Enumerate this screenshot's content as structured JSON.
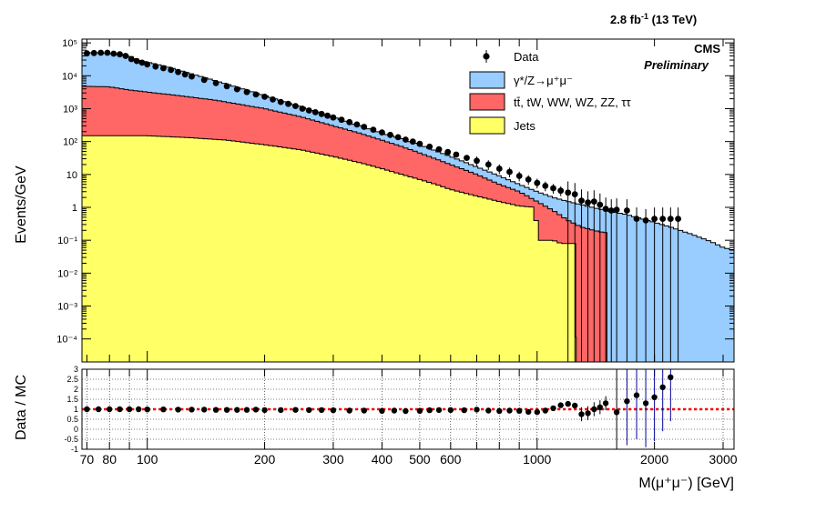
{
  "header": {
    "lumi": "2.8 fb",
    "lumi_sup": "-1",
    "lumi_energy": " (13 TeV)",
    "experiment": "CMS",
    "status": "Preliminary"
  },
  "colors": {
    "dy": "#99ccff",
    "ttbar": "#ff6666",
    "jets": "#ffff66",
    "data": "#000000",
    "ratio_line": "#ff0000",
    "ratio_err_high": "#000099"
  },
  "chart_data": [
    {
      "type": "area",
      "stacked": true,
      "log_y": true,
      "log_x": true,
      "xlabel": "M(μ⁺μ⁻) [GeV]",
      "ylabel": "Events/GeV",
      "xlim": [
        68,
        3200
      ],
      "ylim": [
        2e-05,
        130000
      ],
      "x_ticks": [
        "70",
        "80",
        "100",
        "200",
        "300",
        "400",
        "500",
        "600",
        "1000",
        "2000",
        "3000"
      ],
      "y_ticks": [
        "10⁵",
        "10⁴",
        "10³",
        "10²",
        "10",
        "1",
        "10⁻¹",
        "10⁻²",
        "10⁻³",
        "10⁻⁴"
      ],
      "legend": [
        "Data",
        "γ*/Z→μ⁺μ⁻",
        "tt̄, tW, WW, WZ, ZZ, ττ",
        "Jets"
      ],
      "legend_position": "top-right",
      "series": [
        {
          "name": "Jets",
          "points": [
            [
              68,
              150
            ],
            [
              100,
              150
            ],
            [
              130,
              130
            ],
            [
              160,
              110
            ],
            [
              200,
              80
            ],
            [
              250,
              55
            ],
            [
              300,
              35
            ],
            [
              350,
              23
            ],
            [
              400,
              15
            ],
            [
              450,
              10
            ],
            [
              500,
              7
            ],
            [
              550,
              5
            ],
            [
              600,
              3.5
            ],
            [
              700,
              2.2
            ],
            [
              800,
              1.5
            ],
            [
              900,
              1.1
            ],
            [
              990,
              1.0
            ],
            [
              1000,
              0.1
            ],
            [
              1100,
              0.1
            ],
            [
              1150,
              0.08
            ],
            [
              1250,
              0.08
            ],
            [
              1260,
              2e-05
            ]
          ]
        },
        {
          "name": "tt̄, tW, WW, WZ, ZZ, ττ",
          "points": [
            [
              68,
              4800
            ],
            [
              75,
              4700
            ],
            [
              80,
              4600
            ],
            [
              90,
              3700
            ],
            [
              100,
              3200
            ],
            [
              120,
              2500
            ],
            [
              150,
              1800
            ],
            [
              200,
              1000
            ],
            [
              250,
              550
            ],
            [
              300,
              300
            ],
            [
              350,
              180
            ],
            [
              400,
              110
            ],
            [
              450,
              70
            ],
            [
              500,
              45
            ],
            [
              600,
              20
            ],
            [
              700,
              10
            ],
            [
              800,
              5
            ],
            [
              900,
              3
            ],
            [
              1000,
              1.5
            ],
            [
              1100,
              0.8
            ],
            [
              1200,
              0.4
            ],
            [
              1300,
              0.25
            ],
            [
              1400,
              0.2
            ],
            [
              1450,
              0.18
            ],
            [
              1500,
              0.17
            ],
            [
              1510,
              2e-05
            ]
          ]
        },
        {
          "name": "γ*/Z→μ⁺μ⁻",
          "points": [
            [
              68,
              50000
            ],
            [
              75,
              50000
            ],
            [
              80,
              48000
            ],
            [
              85,
              45000
            ],
            [
              90,
              40000
            ],
            [
              95,
              30000
            ],
            [
              100,
              26000
            ],
            [
              110,
              20000
            ],
            [
              120,
              15000
            ],
            [
              150,
              7000
            ],
            [
              200,
              2500
            ],
            [
              250,
              1100
            ],
            [
              300,
              550
            ],
            [
              350,
              300
            ],
            [
              400,
              180
            ],
            [
              450,
              120
            ],
            [
              500,
              80
            ],
            [
              600,
              35
            ],
            [
              700,
              17
            ],
            [
              800,
              9
            ],
            [
              900,
              5
            ],
            [
              1000,
              3
            ],
            [
              1100,
              2
            ],
            [
              1200,
              1.5
            ],
            [
              1300,
              1.2
            ],
            [
              1500,
              0.8
            ],
            [
              1700,
              0.6
            ],
            [
              2000,
              0.35
            ],
            [
              2200,
              0.25
            ],
            [
              2500,
              0.15
            ],
            [
              2800,
              0.09
            ],
            [
              3000,
              0.06
            ],
            [
              3200,
              0.05
            ]
          ]
        },
        {
          "name": "Data",
          "points": [
            [
              70,
              48000
            ],
            [
              73,
              49000
            ],
            [
              76,
              50000
            ],
            [
              79,
              50000
            ],
            [
              82,
              47000
            ],
            [
              85,
              45000
            ],
            [
              88,
              40000
            ],
            [
              91,
              32000
            ],
            [
              94,
              28000
            ],
            [
              97,
              25000
            ],
            [
              100,
              22000
            ],
            [
              105,
              19000
            ],
            [
              110,
              17000
            ],
            [
              115,
              15000
            ],
            [
              120,
              13000
            ],
            [
              125,
              11000
            ],
            [
              130,
              9500
            ],
            [
              140,
              7500
            ],
            [
              150,
              6000
            ],
            [
              160,
              4800
            ],
            [
              170,
              3900
            ],
            [
              180,
              3200
            ],
            [
              190,
              2700
            ],
            [
              200,
              2300
            ],
            [
              210,
              1900
            ],
            [
              220,
              1600
            ],
            [
              230,
              1400
            ],
            [
              240,
              1200
            ],
            [
              250,
              1000
            ],
            [
              260,
              880
            ],
            [
              270,
              780
            ],
            [
              280,
              690
            ],
            [
              290,
              610
            ],
            [
              300,
              540
            ],
            [
              315,
              460
            ],
            [
              330,
              390
            ],
            [
              345,
              330
            ],
            [
              360,
              280
            ],
            [
              380,
              230
            ],
            [
              400,
              190
            ],
            [
              420,
              160
            ],
            [
              440,
              135
            ],
            [
              460,
              115
            ],
            [
              480,
              100
            ],
            [
              500,
              85
            ],
            [
              530,
              70
            ],
            [
              560,
              58
            ],
            [
              590,
              48
            ],
            [
              620,
              40
            ],
            [
              660,
              32
            ],
            [
              700,
              26
            ],
            [
              750,
              20
            ],
            [
              800,
              15
            ],
            [
              850,
              12
            ],
            [
              900,
              9
            ],
            [
              950,
              7
            ],
            [
              1000,
              5.5
            ],
            [
              1050,
              4.5
            ],
            [
              1100,
              3.8
            ],
            [
              1150,
              3.2
            ],
            [
              1200,
              2.8
            ],
            [
              1250,
              2.5
            ],
            [
              1300,
              1.6
            ],
            [
              1350,
              1.4
            ],
            [
              1400,
              1.5
            ],
            [
              1450,
              1.2
            ],
            [
              1500,
              0.9
            ],
            [
              1550,
              0.8
            ],
            [
              1600,
              0.85
            ],
            [
              1700,
              0.8
            ],
            [
              1800,
              0.45
            ],
            [
              1900,
              0.4
            ],
            [
              2000,
              0.45
            ],
            [
              2100,
              0.45
            ],
            [
              2200,
              0.45
            ],
            [
              2300,
              0.45
            ]
          ]
        }
      ]
    },
    {
      "type": "scatter",
      "log_x": true,
      "xlabel": "M(μ⁺μ⁻) [GeV]",
      "ylabel": "Data / MC",
      "xlim": [
        68,
        3200
      ],
      "ylim": [
        -1,
        3
      ],
      "y_ticks": [
        "3",
        "2.5",
        "2",
        "1.5",
        "1",
        "0.5",
        "0",
        "-0.5",
        "-1"
      ],
      "reference_line": 1,
      "series": [
        {
          "name": "Data",
          "points": [
            [
              70,
              1.0
            ],
            [
              75,
              1.0
            ],
            [
              80,
              1.0
            ],
            [
              85,
              1.0
            ],
            [
              90,
              1.0
            ],
            [
              95,
              1.0
            ],
            [
              100,
              0.99
            ],
            [
              110,
              0.99
            ],
            [
              120,
              0.98
            ],
            [
              130,
              0.98
            ],
            [
              140,
              0.98
            ],
            [
              150,
              0.97
            ],
            [
              160,
              0.97
            ],
            [
              170,
              0.97
            ],
            [
              180,
              0.97
            ],
            [
              190,
              0.98
            ],
            [
              200,
              0.96
            ],
            [
              220,
              0.96
            ],
            [
              240,
              0.97
            ],
            [
              260,
              0.96
            ],
            [
              280,
              0.96
            ],
            [
              300,
              0.95
            ],
            [
              330,
              0.93
            ],
            [
              360,
              0.93
            ],
            [
              400,
              0.92
            ],
            [
              430,
              0.93
            ],
            [
              460,
              0.91
            ],
            [
              500,
              0.92
            ],
            [
              530,
              0.95
            ],
            [
              560,
              0.96
            ],
            [
              600,
              0.96
            ],
            [
              650,
              0.95
            ],
            [
              700,
              0.98
            ],
            [
              750,
              0.93
            ],
            [
              800,
              0.91
            ],
            [
              850,
              0.93
            ],
            [
              900,
              0.92
            ],
            [
              950,
              0.87
            ],
            [
              1000,
              0.86
            ],
            [
              1050,
              0.93
            ],
            [
              1100,
              1.05
            ],
            [
              1150,
              1.2
            ],
            [
              1200,
              1.27
            ],
            [
              1250,
              1.18
            ],
            [
              1300,
              0.75
            ],
            [
              1350,
              0.8
            ],
            [
              1400,
              1.0
            ],
            [
              1450,
              1.1
            ],
            [
              1500,
              1.3
            ],
            [
              1600,
              0.85
            ],
            [
              1700,
              1.4
            ],
            [
              1800,
              1.7
            ],
            [
              1900,
              1.3
            ],
            [
              2000,
              1.6
            ],
            [
              2100,
              2.1
            ],
            [
              2200,
              2.6
            ]
          ]
        }
      ]
    }
  ]
}
